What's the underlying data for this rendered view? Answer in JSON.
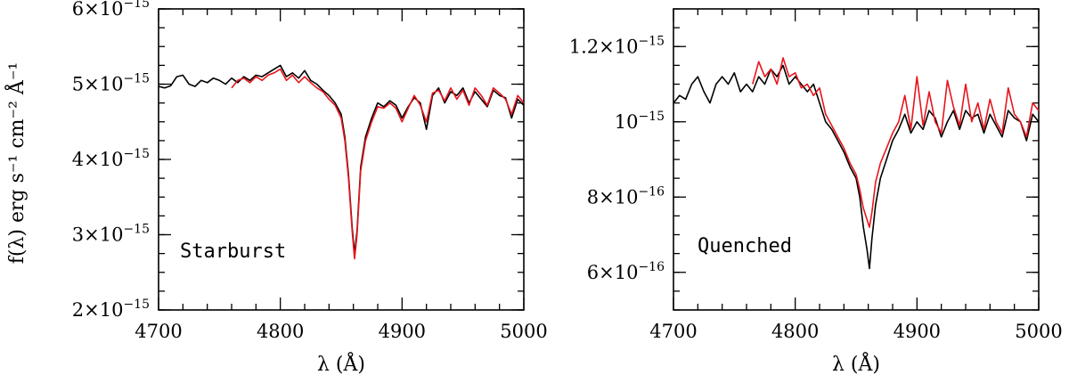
{
  "chart_data": [
    {
      "type": "line",
      "panel_label": "Starburst",
      "xlabel": "λ (Å)",
      "ylabel": "f(λ) erg s⁻¹ cm⁻² Å⁻¹",
      "xlim": [
        4700,
        5000
      ],
      "ylim": [
        2e-15,
        6e-15
      ],
      "xticks": [
        4700,
        4800,
        4900,
        5000
      ],
      "xtick_labels": [
        "4700",
        "4800",
        "4900",
        "5000"
      ],
      "yticks": [
        2e-15,
        3e-15,
        4e-15,
        5e-15,
        6e-15
      ],
      "ytick_labels": [
        {
          "mantissa": "2×10",
          "exp": "−15"
        },
        {
          "mantissa": "3×10",
          "exp": "−15"
        },
        {
          "mantissa": "4×10",
          "exp": "−15"
        },
        {
          "mantissa": "5×10",
          "exp": "−15"
        },
        {
          "mantissa": "6×10",
          "exp": "−15"
        }
      ],
      "grid": false,
      "series": [
        {
          "color": "#000000",
          "x": [
            4700,
            4705,
            4710,
            4715,
            4720,
            4725,
            4730,
            4735,
            4740,
            4745,
            4750,
            4755,
            4760,
            4765,
            4770,
            4775,
            4780,
            4785,
            4790,
            4795,
            4800,
            4805,
            4810,
            4815,
            4820,
            4825,
            4830,
            4835,
            4840,
            4845,
            4850,
            4853,
            4856,
            4859,
            4861,
            4863,
            4866,
            4870,
            4875,
            4880,
            4885,
            4890,
            4895,
            4900,
            4905,
            4910,
            4915,
            4920,
            4925,
            4930,
            4935,
            4940,
            4945,
            4950,
            4955,
            4960,
            4965,
            4970,
            4975,
            4980,
            4985,
            4990,
            4995,
            5000
          ],
          "y": [
            4.97e-15,
            4.95e-15,
            4.98e-15,
            5.1e-15,
            5.12e-15,
            5e-15,
            4.97e-15,
            5.05e-15,
            5.02e-15,
            5.08e-15,
            5.05e-15,
            5e-15,
            5.08e-15,
            5.02e-15,
            5.1e-15,
            5.05e-15,
            5.12e-15,
            5.1e-15,
            5.15e-15,
            5.2e-15,
            5.25e-15,
            5.1e-15,
            5.15e-15,
            5.08e-15,
            5.18e-15,
            5.05e-15,
            5e-15,
            4.92e-15,
            4.85e-15,
            4.75e-15,
            4.6e-15,
            4.3e-15,
            3.8e-15,
            3.1e-15,
            2.75e-15,
            3.05e-15,
            3.9e-15,
            4.3e-15,
            4.55e-15,
            4.75e-15,
            4.7e-15,
            4.78e-15,
            4.72e-15,
            4.55e-15,
            4.7e-15,
            4.82e-15,
            4.75e-15,
            4.4e-15,
            4.85e-15,
            4.95e-15,
            4.75e-15,
            4.9e-15,
            4.85e-15,
            4.95e-15,
            4.75e-15,
            4.9e-15,
            4.8e-15,
            4.7e-15,
            4.92e-15,
            4.85e-15,
            4.82e-15,
            4.55e-15,
            4.8e-15,
            4.72e-15
          ]
        },
        {
          "color": "#e8141c",
          "x": [
            4760,
            4765,
            4770,
            4775,
            4780,
            4785,
            4790,
            4795,
            4800,
            4805,
            4810,
            4815,
            4820,
            4825,
            4830,
            4835,
            4840,
            4845,
            4850,
            4853,
            4856,
            4859,
            4861,
            4863,
            4866,
            4870,
            4875,
            4880,
            4885,
            4890,
            4895,
            4900,
            4905,
            4910,
            4915,
            4920,
            4925,
            4930,
            4935,
            4940,
            4945,
            4950,
            4955,
            4960,
            4965,
            4970,
            4975,
            4980,
            4985,
            4990,
            4995,
            5000
          ],
          "y": [
            4.95e-15,
            5.05e-15,
            5.08e-15,
            5.02e-15,
            5.1e-15,
            5.05e-15,
            5.12e-15,
            5.15e-15,
            5.2e-15,
            5.05e-15,
            5.12e-15,
            5.02e-15,
            5.1e-15,
            5.02e-15,
            4.95e-15,
            4.9e-15,
            4.8e-15,
            4.72e-15,
            4.55e-15,
            4.25e-15,
            3.75e-15,
            3.05e-15,
            2.68e-15,
            3e-15,
            3.85e-15,
            4.25e-15,
            4.5e-15,
            4.7e-15,
            4.68e-15,
            4.75e-15,
            4.68e-15,
            4.5e-15,
            4.68e-15,
            4.85e-15,
            4.72e-15,
            4.5e-15,
            4.88e-15,
            4.92e-15,
            4.78e-15,
            4.95e-15,
            4.8e-15,
            4.92e-15,
            4.72e-15,
            4.95e-15,
            4.85e-15,
            4.72e-15,
            4.95e-15,
            4.88e-15,
            4.8e-15,
            4.6e-15,
            4.85e-15,
            4.75e-15
          ]
        }
      ]
    },
    {
      "type": "line",
      "panel_label": "Quenched",
      "xlabel": "λ (Å)",
      "ylabel": "",
      "xlim": [
        4700,
        5000
      ],
      "ylim": [
        5e-16,
        1.3e-15
      ],
      "xticks": [
        4700,
        4800,
        4900,
        5000
      ],
      "xtick_labels": [
        "4700",
        "4800",
        "4900",
        "5000"
      ],
      "yticks": [
        6e-16,
        8e-16,
        1e-15,
        1.2e-15
      ],
      "ytick_labels": [
        {
          "mantissa": "6×10",
          "exp": "−16"
        },
        {
          "mantissa": "8×10",
          "exp": "−16"
        },
        {
          "mantissa": "10",
          "exp": "−15"
        },
        {
          "mantissa": "1.2×10",
          "exp": "−15"
        }
      ],
      "grid": false,
      "series": [
        {
          "color": "#000000",
          "x": [
            4700,
            4705,
            4710,
            4715,
            4720,
            4725,
            4730,
            4735,
            4740,
            4745,
            4750,
            4755,
            4760,
            4765,
            4770,
            4775,
            4780,
            4785,
            4790,
            4795,
            4800,
            4805,
            4810,
            4815,
            4820,
            4825,
            4830,
            4835,
            4840,
            4845,
            4850,
            4853,
            4856,
            4859,
            4861,
            4863,
            4866,
            4870,
            4875,
            4880,
            4885,
            4890,
            4895,
            4900,
            4905,
            4910,
            4915,
            4920,
            4925,
            4930,
            4935,
            4940,
            4945,
            4950,
            4955,
            4960,
            4965,
            4970,
            4975,
            4980,
            4985,
            4990,
            4995,
            5000
          ],
          "y": [
            1.05e-15,
            1.07e-15,
            1.06e-15,
            1.1e-15,
            1.12e-15,
            1.08e-15,
            1.05e-15,
            1.1e-15,
            1.12e-15,
            1.1e-15,
            1.13e-15,
            1.08e-15,
            1.1e-15,
            1.08e-15,
            1.12e-15,
            1.1e-15,
            1.14e-15,
            1.12e-15,
            1.15e-15,
            1.1e-15,
            1.12e-15,
            1.1e-15,
            1.08e-15,
            1.1e-15,
            1.05e-15,
            1e-15,
            9.8e-16,
            9.5e-16,
            9.2e-16,
            8.8e-16,
            8.5e-16,
            8e-16,
            7.2e-16,
            6.6e-16,
            6.1e-16,
            6.9e-16,
            7.8e-16,
            8.5e-16,
            9e-16,
            9.5e-16,
            9.8e-16,
            1.02e-15,
            9.7e-16,
            1e-15,
            9.8e-16,
            1.03e-15,
            1.01e-15,
            9.6e-16,
            1e-15,
            1.03e-15,
            9.8e-16,
            1.03e-15,
            1.01e-15,
            1.02e-15,
            9.7e-16,
            1.02e-15,
            9.9e-16,
            9.6e-16,
            1.03e-15,
            1.01e-15,
            1e-15,
            9.5e-16,
            1.02e-15,
            1e-15
          ]
        },
        {
          "color": "#e8141c",
          "x": [
            4765,
            4770,
            4775,
            4780,
            4785,
            4790,
            4795,
            4800,
            4805,
            4810,
            4815,
            4820,
            4825,
            4830,
            4835,
            4840,
            4845,
            4850,
            4853,
            4856,
            4859,
            4861,
            4863,
            4866,
            4870,
            4875,
            4880,
            4885,
            4890,
            4895,
            4900,
            4905,
            4910,
            4915,
            4920,
            4925,
            4930,
            4935,
            4940,
            4945,
            4950,
            4955,
            4960,
            4965,
            4970,
            4975,
            4980,
            4985,
            4990,
            4995,
            5000
          ],
          "y": [
            1.1e-15,
            1.16e-15,
            1.12e-15,
            1.14e-15,
            1.1e-15,
            1.17e-15,
            1.12e-15,
            1.13e-15,
            1.09e-15,
            1.1e-15,
            1.07e-15,
            1.09e-15,
            1.02e-15,
            9.9e-16,
            9.6e-16,
            9.3e-16,
            8.9e-16,
            8.6e-16,
            8.2e-16,
            7.7e-16,
            7.4e-16,
            7.2e-16,
            7.6e-16,
            8.4e-16,
            8.9e-16,
            9.3e-16,
            9.7e-16,
            1e-15,
            1.07e-15,
            9.8e-16,
            1.12e-15,
            9.9e-16,
            1.08e-15,
            1e-15,
            9.7e-16,
            1.11e-15,
            1.04e-15,
            9.9e-16,
            1.1e-15,
            1e-15,
            1.05e-15,
            9.8e-16,
            1.06e-15,
            1e-15,
            9.7e-16,
            1.09e-15,
            1.02e-15,
            1e-15,
            9.6e-16,
            1.05e-15,
            1.03e-15
          ]
        }
      ]
    }
  ]
}
